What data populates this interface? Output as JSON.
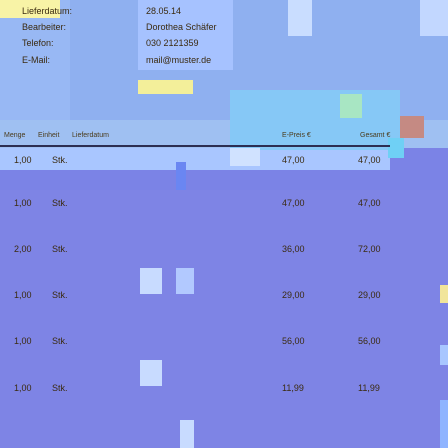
{
  "meta": {
    "delivery_date_label": "Lieferdatum:",
    "delivery_date_value": "28.05.14",
    "agent_label": "Bearbeiter:",
    "agent_value": "Dorothea Schäfer",
    "phone_label": "Telefon:",
    "phone_value": "030 2121359",
    "email_label": "E-Mail:",
    "email_value": "mail@muster.de"
  },
  "table": {
    "headers": {
      "quantity": "Menge",
      "unit": "Einheit",
      "delivery_date": "Lieferdatum",
      "unit_price": "E-Preis €",
      "total": "Gesamt €"
    },
    "rows": [
      {
        "quantity": "1,00",
        "unit": "Stk.",
        "unit_price": "47,00",
        "total": "47,00"
      },
      {
        "quantity": "1,00",
        "unit": "Stk.",
        "unit_price": "47,00",
        "total": "47,00"
      },
      {
        "quantity": "2,00",
        "unit": "Stk.",
        "unit_price": "36,00",
        "total": "72,00"
      },
      {
        "quantity": "1,00",
        "unit": "Stk.",
        "unit_price": "29,00",
        "total": "29,00"
      },
      {
        "quantity": "1,00",
        "unit": "Stk.",
        "unit_price": "56,00",
        "total": "56,00"
      },
      {
        "quantity": "1,00",
        "unit": "Stk.",
        "unit_price": "11,99",
        "total": "11,99"
      }
    ]
  },
  "colors": {
    "background": "#7b83e6",
    "header_band": "#9fc0f2",
    "yellow_strip": "#f7f29a",
    "highlight": "#5ec3f0",
    "rule": "#2c2e52"
  }
}
